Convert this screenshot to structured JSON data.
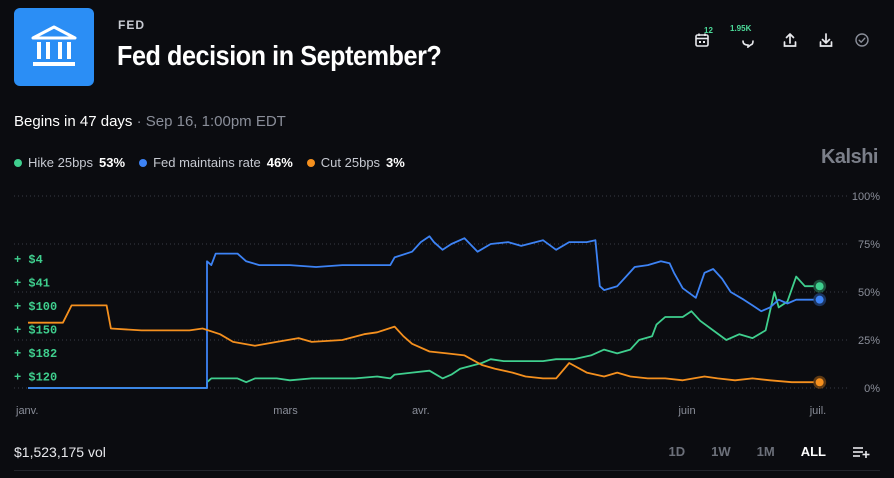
{
  "header": {
    "category": "FED",
    "title": "Fed decision in September?",
    "toolbar": {
      "calendar_count": "12",
      "comments_count": "1.95K"
    }
  },
  "begins": {
    "main": "Begins in 47 days",
    "separator": "·",
    "date": "Sep 16, 1:00pm EDT"
  },
  "brand": "Kalshi",
  "legend": [
    {
      "name": "Hike 25bps",
      "pct": "53%",
      "color": "#3fcf8e"
    },
    {
      "name": "Fed maintains rate",
      "pct": "46%",
      "color": "#3d83f5"
    },
    {
      "name": "Cut 25bps",
      "pct": "3%",
      "color": "#f5901e"
    }
  ],
  "trades": [
    "+ $4",
    "+ $41",
    "+ $100",
    "+ $150",
    "+ $182",
    "+ $120"
  ],
  "footer": {
    "volume": "$1,523,175 vol",
    "ranges": [
      "1D",
      "1W",
      "1M",
      "ALL"
    ],
    "active_range": "ALL"
  },
  "chart_data": {
    "type": "line",
    "x_tick_labels": [
      "janv.",
      "mars",
      "avr.",
      "juin",
      "juil."
    ],
    "x_tick_positions": [
      0,
      59,
      90,
      151,
      181
    ],
    "y_tick_labels": [
      "100%",
      "75%",
      "50%",
      "25%",
      "0%"
    ],
    "y_tick_values": [
      100,
      75,
      50,
      25,
      0
    ],
    "ylim": [
      0,
      100
    ],
    "xlim": [
      0,
      181
    ],
    "grid": true,
    "series": [
      {
        "name": "Hike 25bps",
        "color": "#3fcf8e",
        "points": [
          [
            0,
            0
          ],
          [
            41,
            0
          ],
          [
            41,
            3
          ],
          [
            42,
            5
          ],
          [
            48,
            5
          ],
          [
            50,
            3
          ],
          [
            52,
            5
          ],
          [
            57,
            5
          ],
          [
            60,
            4
          ],
          [
            65,
            5
          ],
          [
            75,
            5
          ],
          [
            80,
            6
          ],
          [
            83,
            5
          ],
          [
            84,
            7
          ],
          [
            88,
            8
          ],
          [
            92,
            9
          ],
          [
            95,
            5
          ],
          [
            97,
            7
          ],
          [
            99,
            10
          ],
          [
            104,
            13
          ],
          [
            106,
            15
          ],
          [
            109,
            14
          ],
          [
            115,
            14
          ],
          [
            118,
            14
          ],
          [
            121,
            15
          ],
          [
            125,
            15
          ],
          [
            129,
            17
          ],
          [
            132,
            20
          ],
          [
            135,
            18
          ],
          [
            138,
            20
          ],
          [
            140,
            25
          ],
          [
            143,
            27
          ],
          [
            144,
            33
          ],
          [
            146,
            37
          ],
          [
            150,
            37
          ],
          [
            152,
            40
          ],
          [
            154,
            35
          ],
          [
            157,
            30
          ],
          [
            160,
            25
          ],
          [
            163,
            28
          ],
          [
            166,
            26
          ],
          [
            169,
            30
          ],
          [
            171,
            50
          ],
          [
            172,
            42
          ],
          [
            174,
            45
          ],
          [
            176,
            58
          ],
          [
            178,
            53
          ],
          [
            180,
            53
          ]
        ]
      },
      {
        "name": "Fed maintains rate",
        "color": "#3d83f5",
        "points": [
          [
            0,
            0
          ],
          [
            41,
            0
          ],
          [
            41,
            66
          ],
          [
            42,
            64
          ],
          [
            43,
            70
          ],
          [
            48,
            70
          ],
          [
            50,
            66
          ],
          [
            53,
            64
          ],
          [
            60,
            64
          ],
          [
            66,
            63
          ],
          [
            72,
            64
          ],
          [
            77,
            64
          ],
          [
            83,
            64
          ],
          [
            84,
            68
          ],
          [
            88,
            71
          ],
          [
            90,
            76
          ],
          [
            92,
            79
          ],
          [
            93,
            76
          ],
          [
            95,
            72
          ],
          [
            97,
            75
          ],
          [
            100,
            78
          ],
          [
            103,
            71
          ],
          [
            106,
            75
          ],
          [
            110,
            76
          ],
          [
            113,
            74
          ],
          [
            118,
            77
          ],
          [
            121,
            72
          ],
          [
            124,
            76
          ],
          [
            128,
            76
          ],
          [
            130,
            77
          ],
          [
            131,
            53
          ],
          [
            132,
            51
          ],
          [
            135,
            53
          ],
          [
            137,
            58
          ],
          [
            139,
            63
          ],
          [
            142,
            64
          ],
          [
            145,
            66
          ],
          [
            147,
            65
          ],
          [
            148,
            60
          ],
          [
            150,
            52
          ],
          [
            153,
            47
          ],
          [
            155,
            60
          ],
          [
            157,
            62
          ],
          [
            159,
            57
          ],
          [
            161,
            50
          ],
          [
            164,
            46
          ],
          [
            166,
            43
          ],
          [
            168,
            40
          ],
          [
            170,
            42
          ],
          [
            172,
            46
          ],
          [
            174,
            44
          ],
          [
            176,
            46
          ],
          [
            178,
            46
          ],
          [
            180,
            46
          ]
        ]
      },
      {
        "name": "Cut 25bps",
        "color": "#f5901e",
        "points": [
          [
            0,
            34
          ],
          [
            8,
            34
          ],
          [
            10,
            43
          ],
          [
            18,
            43
          ],
          [
            19,
            31
          ],
          [
            26,
            30
          ],
          [
            37,
            30
          ],
          [
            40,
            31
          ],
          [
            44,
            28
          ],
          [
            47,
            24
          ],
          [
            52,
            22
          ],
          [
            57,
            24
          ],
          [
            62,
            26
          ],
          [
            65,
            24
          ],
          [
            72,
            25
          ],
          [
            77,
            28
          ],
          [
            80,
            29
          ],
          [
            84,
            32
          ],
          [
            86,
            27
          ],
          [
            88,
            23
          ],
          [
            92,
            19
          ],
          [
            96,
            18
          ],
          [
            100,
            17
          ],
          [
            104,
            12
          ],
          [
            107,
            10
          ],
          [
            111,
            8
          ],
          [
            114,
            6
          ],
          [
            118,
            5
          ],
          [
            121,
            5
          ],
          [
            124,
            13
          ],
          [
            128,
            8
          ],
          [
            132,
            6
          ],
          [
            135,
            8
          ],
          [
            138,
            6
          ],
          [
            142,
            5
          ],
          [
            146,
            5
          ],
          [
            150,
            4
          ],
          [
            155,
            6
          ],
          [
            158,
            5
          ],
          [
            162,
            4
          ],
          [
            166,
            5
          ],
          [
            170,
            4
          ],
          [
            175,
            3
          ],
          [
            180,
            3
          ]
        ]
      }
    ]
  }
}
